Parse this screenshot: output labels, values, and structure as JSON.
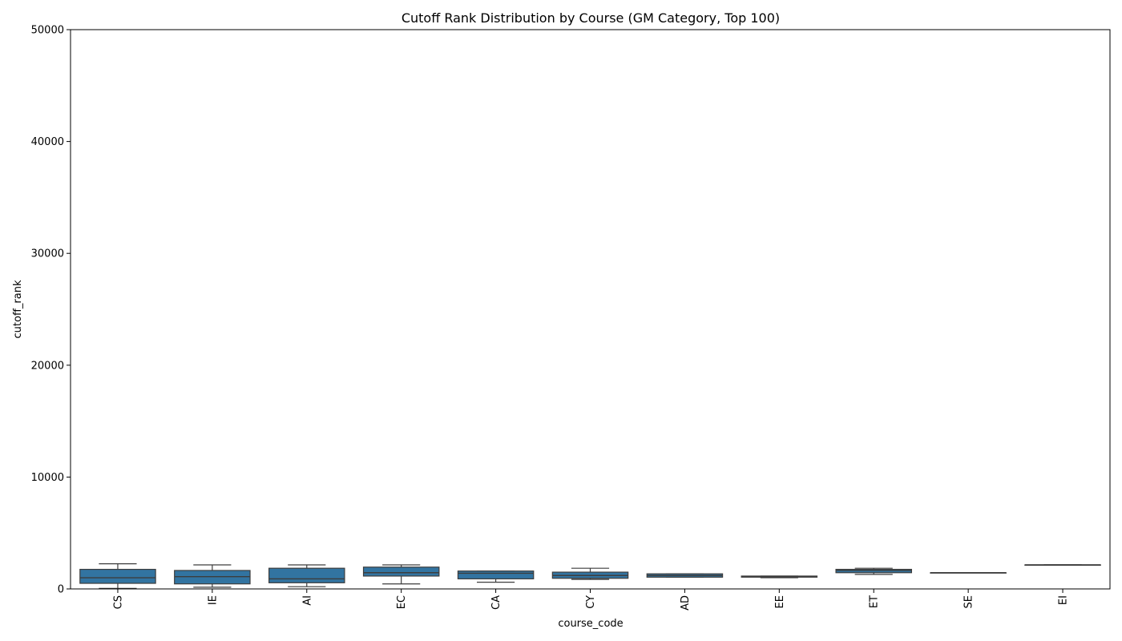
{
  "chart_data": {
    "type": "box",
    "title": "Cutoff Rank Distribution by Course (GM Category, Top 100)",
    "xlabel": "course_code",
    "ylabel": "cutoff_rank",
    "ylim": [
      0,
      50000
    ],
    "yticks": [
      0,
      10000,
      20000,
      30000,
      40000,
      50000
    ],
    "box_color": "#3274a1",
    "edge_color": "#3d3d3d",
    "categories": [
      "CS",
      "IE",
      "AI",
      "EC",
      "CA",
      "CY",
      "AD",
      "EE",
      "ET",
      "SE",
      "EI"
    ],
    "boxes": [
      {
        "category": "CS",
        "whisker_low": 50,
        "q1": 500,
        "median": 1000,
        "q3": 1750,
        "whisker_high": 2250
      },
      {
        "category": "IE",
        "whisker_low": 150,
        "q1": 450,
        "median": 1100,
        "q3": 1650,
        "whisker_high": 2150
      },
      {
        "category": "AI",
        "whisker_low": 200,
        "q1": 550,
        "median": 900,
        "q3": 1850,
        "whisker_high": 2150
      },
      {
        "category": "EC",
        "whisker_low": 450,
        "q1": 1150,
        "median": 1450,
        "q3": 1950,
        "whisker_high": 2150
      },
      {
        "category": "CA",
        "whisker_low": 600,
        "q1": 900,
        "median": 1400,
        "q3": 1600,
        "whisker_high": 1600
      },
      {
        "category": "CY",
        "whisker_low": 850,
        "q1": 950,
        "median": 1200,
        "q3": 1500,
        "whisker_high": 1850
      },
      {
        "category": "AD",
        "whisker_low": 1050,
        "q1": 1050,
        "median": 1200,
        "q3": 1350,
        "whisker_high": 1350
      },
      {
        "category": "EE",
        "whisker_low": 1000,
        "q1": 1050,
        "median": 1100,
        "q3": 1150,
        "whisker_high": 1150
      },
      {
        "category": "ET",
        "whisker_low": 1300,
        "q1": 1450,
        "median": 1650,
        "q3": 1750,
        "whisker_high": 1850
      },
      {
        "category": "SE",
        "whisker_low": 1450,
        "q1": 1450,
        "median": 1450,
        "q3": 1450,
        "whisker_high": 1450
      },
      {
        "category": "EI",
        "whisker_low": 2150,
        "q1": 2150,
        "median": 2150,
        "q3": 2150,
        "whisker_high": 2150
      }
    ]
  }
}
